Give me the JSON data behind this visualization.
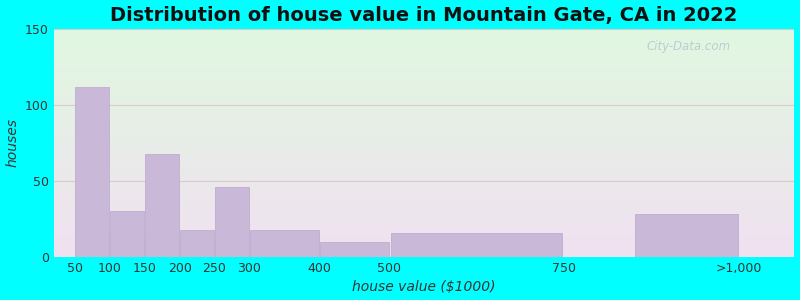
{
  "title": "Distribution of house value in Mountain Gate, CA in 2022",
  "xlabel": "house value ($1000)",
  "ylabel": "houses",
  "ylim": [
    0,
    150
  ],
  "yticks": [
    0,
    50,
    100,
    150
  ],
  "tick_labels": [
    "50",
    "100",
    "150",
    "200",
    "250",
    "300",
    "400",
    "500",
    "750",
    ">1,000"
  ],
  "tick_positions": [
    50,
    100,
    150,
    200,
    250,
    300,
    400,
    500,
    750,
    1000
  ],
  "bar_lefts": [
    50,
    100,
    150,
    200,
    250,
    300,
    400,
    500,
    750,
    850
  ],
  "bar_rights": [
    100,
    150,
    200,
    250,
    300,
    400,
    500,
    750,
    850,
    1000
  ],
  "bar_values": [
    112,
    30,
    68,
    18,
    46,
    18,
    10,
    16,
    0,
    28
  ],
  "bar_color": "#c9b8d8",
  "bar_edge_color": "#b8a8cc",
  "background_outer": "#00ffff",
  "grid_color": "#ddc8c8",
  "title_fontsize": 14,
  "axis_label_fontsize": 10,
  "tick_fontsize": 9,
  "watermark": "City-Data.com"
}
